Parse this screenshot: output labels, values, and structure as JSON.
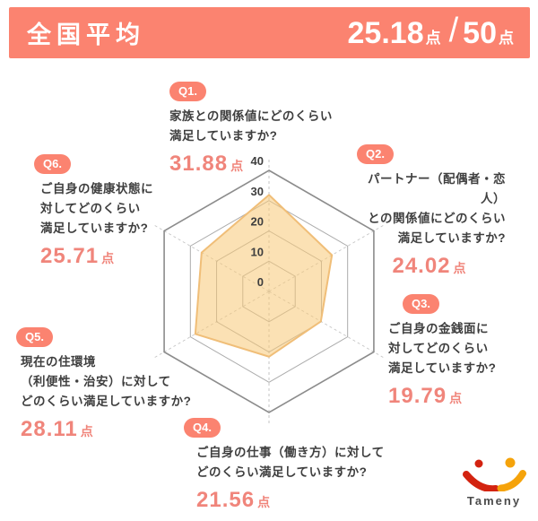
{
  "header": {
    "title": "全国平均",
    "score_value": "25.18",
    "score_unit": "点",
    "score_divider": "/",
    "score_total": "50",
    "score_total_unit": "点"
  },
  "questions": [
    {
      "badge": "Q1.",
      "lines": [
        "家族との関係値にどのくらい",
        "満足していますか?"
      ],
      "score": "31.88",
      "unit": "点"
    },
    {
      "badge": "Q2.",
      "lines": [
        "パートナー（配偶者・恋人）",
        "との関係値にどのくらい",
        "満足していますか?"
      ],
      "score": "24.02",
      "unit": "点"
    },
    {
      "badge": "Q3.",
      "lines": [
        "ご自身の金銭面に",
        "対してどのくらい",
        "満足していますか?"
      ],
      "score": "19.79",
      "unit": "点"
    },
    {
      "badge": "Q4.",
      "lines": [
        "ご自身の仕事（働き方）に対して",
        "どのくらい満足していますか?"
      ],
      "score": "21.56",
      "unit": "点"
    },
    {
      "badge": "Q5.",
      "lines": [
        "現在の住環境",
        "（利便性・治安）に対して",
        "どのくらい満足していますか?"
      ],
      "score": "28.11",
      "unit": "点"
    },
    {
      "badge": "Q6.",
      "lines": [
        "ご自身の健康状態に",
        "対してどのくらい",
        "満足していますか?"
      ],
      "score": "25.71",
      "unit": "点"
    }
  ],
  "chart_data": {
    "type": "radar",
    "categories": [
      "Q1 家族との関係値",
      "Q2 パートナー（配偶者・恋人）との関係値",
      "Q3 ご自身の金銭面",
      "Q4 ご自身の仕事（働き方）",
      "Q5 現在の住環境（利便性・治安）",
      "Q6 ご自身の健康状態"
    ],
    "values": [
      31.88,
      24.02,
      19.79,
      21.56,
      28.11,
      25.71
    ],
    "max": 40,
    "ticks": [
      0,
      10,
      20,
      30,
      40
    ],
    "total_possible": 50,
    "overall_average": 25.18,
    "fill_color": "rgba(247,201,118,0.55)",
    "stroke_color": "#F0BE78",
    "grid_color": "#ABABAB",
    "outer_grid_color": "#8C8C8C",
    "spoke_color": "#C6C6C6",
    "tick_label_color": "#3E3E3E"
  },
  "logo": {
    "text": "Tameny",
    "red": "#D32310",
    "orange": "#F5A30B",
    "text_color": "#4B4B4B"
  },
  "colors": {
    "accent": "#FB8370",
    "score_text": "#F0857B",
    "question_text": "#3F3F3F"
  }
}
